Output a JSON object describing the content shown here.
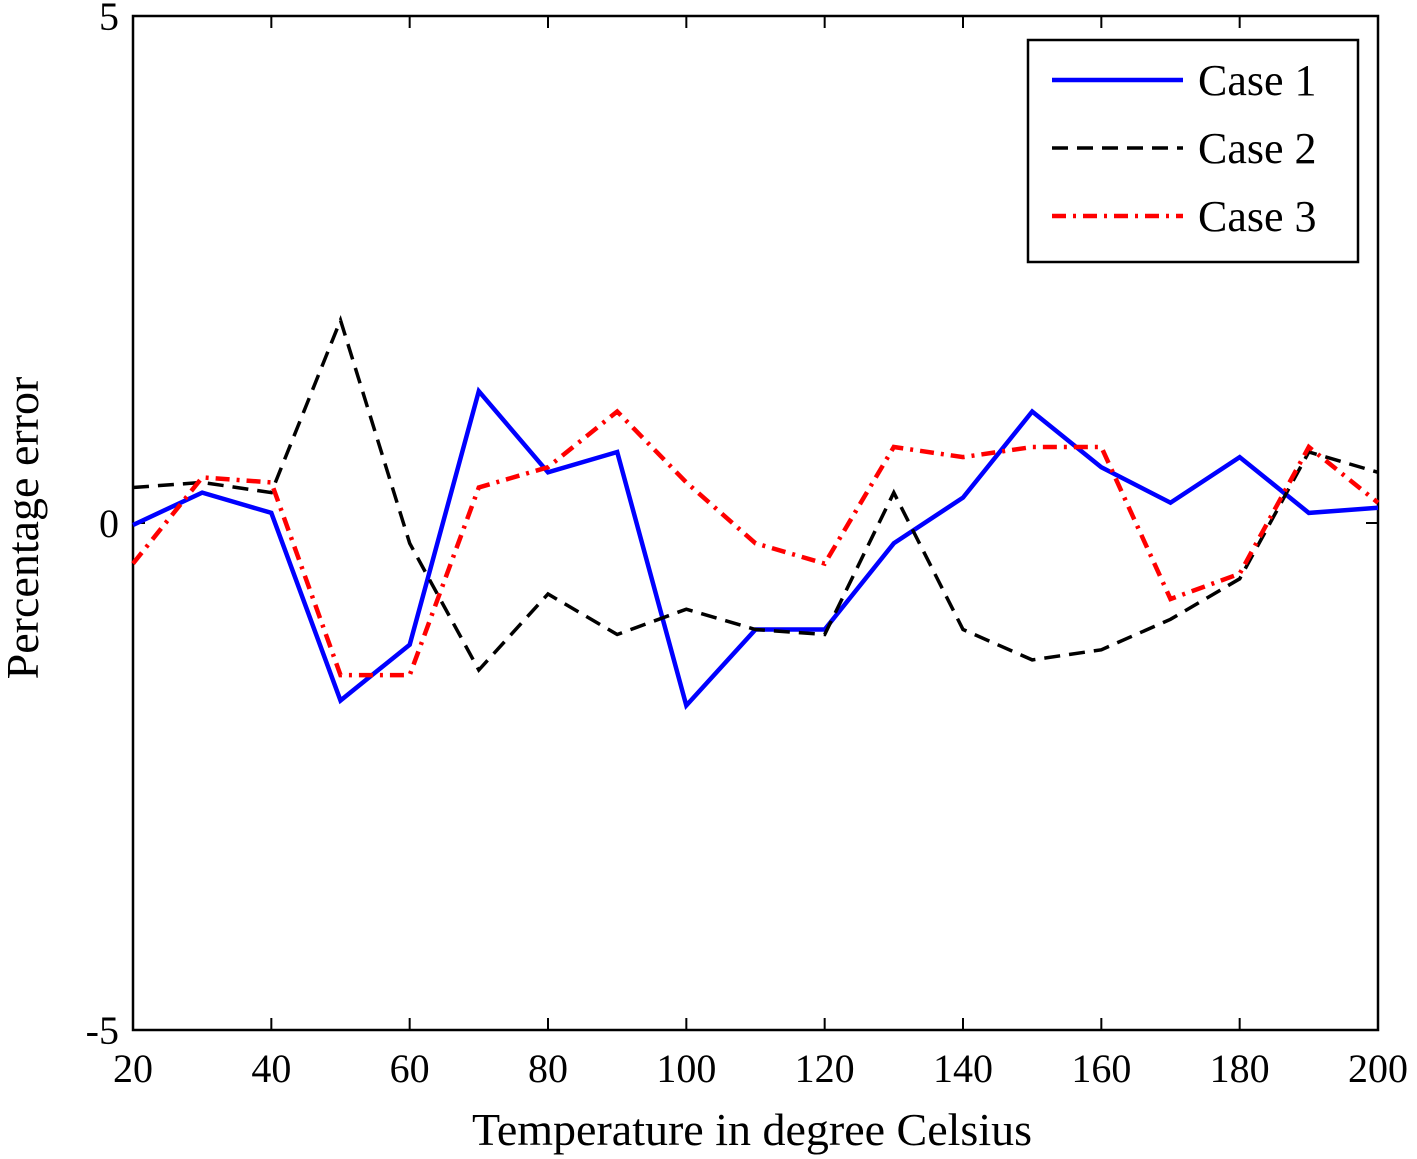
{
  "chart_data": {
    "type": "line",
    "xlabel": "Temperature in degree Celsius",
    "ylabel": "Percentage error",
    "xlim": [
      20,
      200
    ],
    "ylim": [
      -5,
      5
    ],
    "xticks": [
      20,
      40,
      60,
      80,
      100,
      120,
      140,
      160,
      180,
      200
    ],
    "yticks": [
      -5,
      0,
      5
    ],
    "legend_position": "top-right",
    "grid": false,
    "x": [
      20,
      30,
      40,
      50,
      60,
      70,
      80,
      90,
      100,
      110,
      120,
      130,
      140,
      150,
      160,
      170,
      180,
      190,
      200
    ],
    "series": [
      {
        "name": "Case 1",
        "color": "#0000ff",
        "style": "solid",
        "values": [
          -0.02,
          0.3,
          0.1,
          -1.75,
          -1.2,
          1.3,
          0.5,
          0.7,
          -1.8,
          -1.05,
          -1.05,
          -0.2,
          0.25,
          1.1,
          0.55,
          0.2,
          0.65,
          0.1,
          0.15
        ]
      },
      {
        "name": "Case 2",
        "color": "#000000",
        "style": "dashed",
        "values": [
          0.35,
          0.4,
          0.3,
          2.0,
          -0.2,
          -1.45,
          -0.7,
          -1.1,
          -0.85,
          -1.05,
          -1.1,
          0.3,
          -1.05,
          -1.35,
          -1.25,
          -0.95,
          -0.55,
          0.7,
          0.5
        ]
      },
      {
        "name": "Case 3",
        "color": "#ff0000",
        "style": "dashdot",
        "values": [
          -0.4,
          0.45,
          0.4,
          -1.5,
          -1.5,
          0.35,
          0.55,
          1.1,
          0.4,
          -0.2,
          -0.4,
          0.75,
          0.65,
          0.75,
          0.75,
          -0.75,
          -0.5,
          0.75,
          0.2
        ]
      }
    ]
  }
}
